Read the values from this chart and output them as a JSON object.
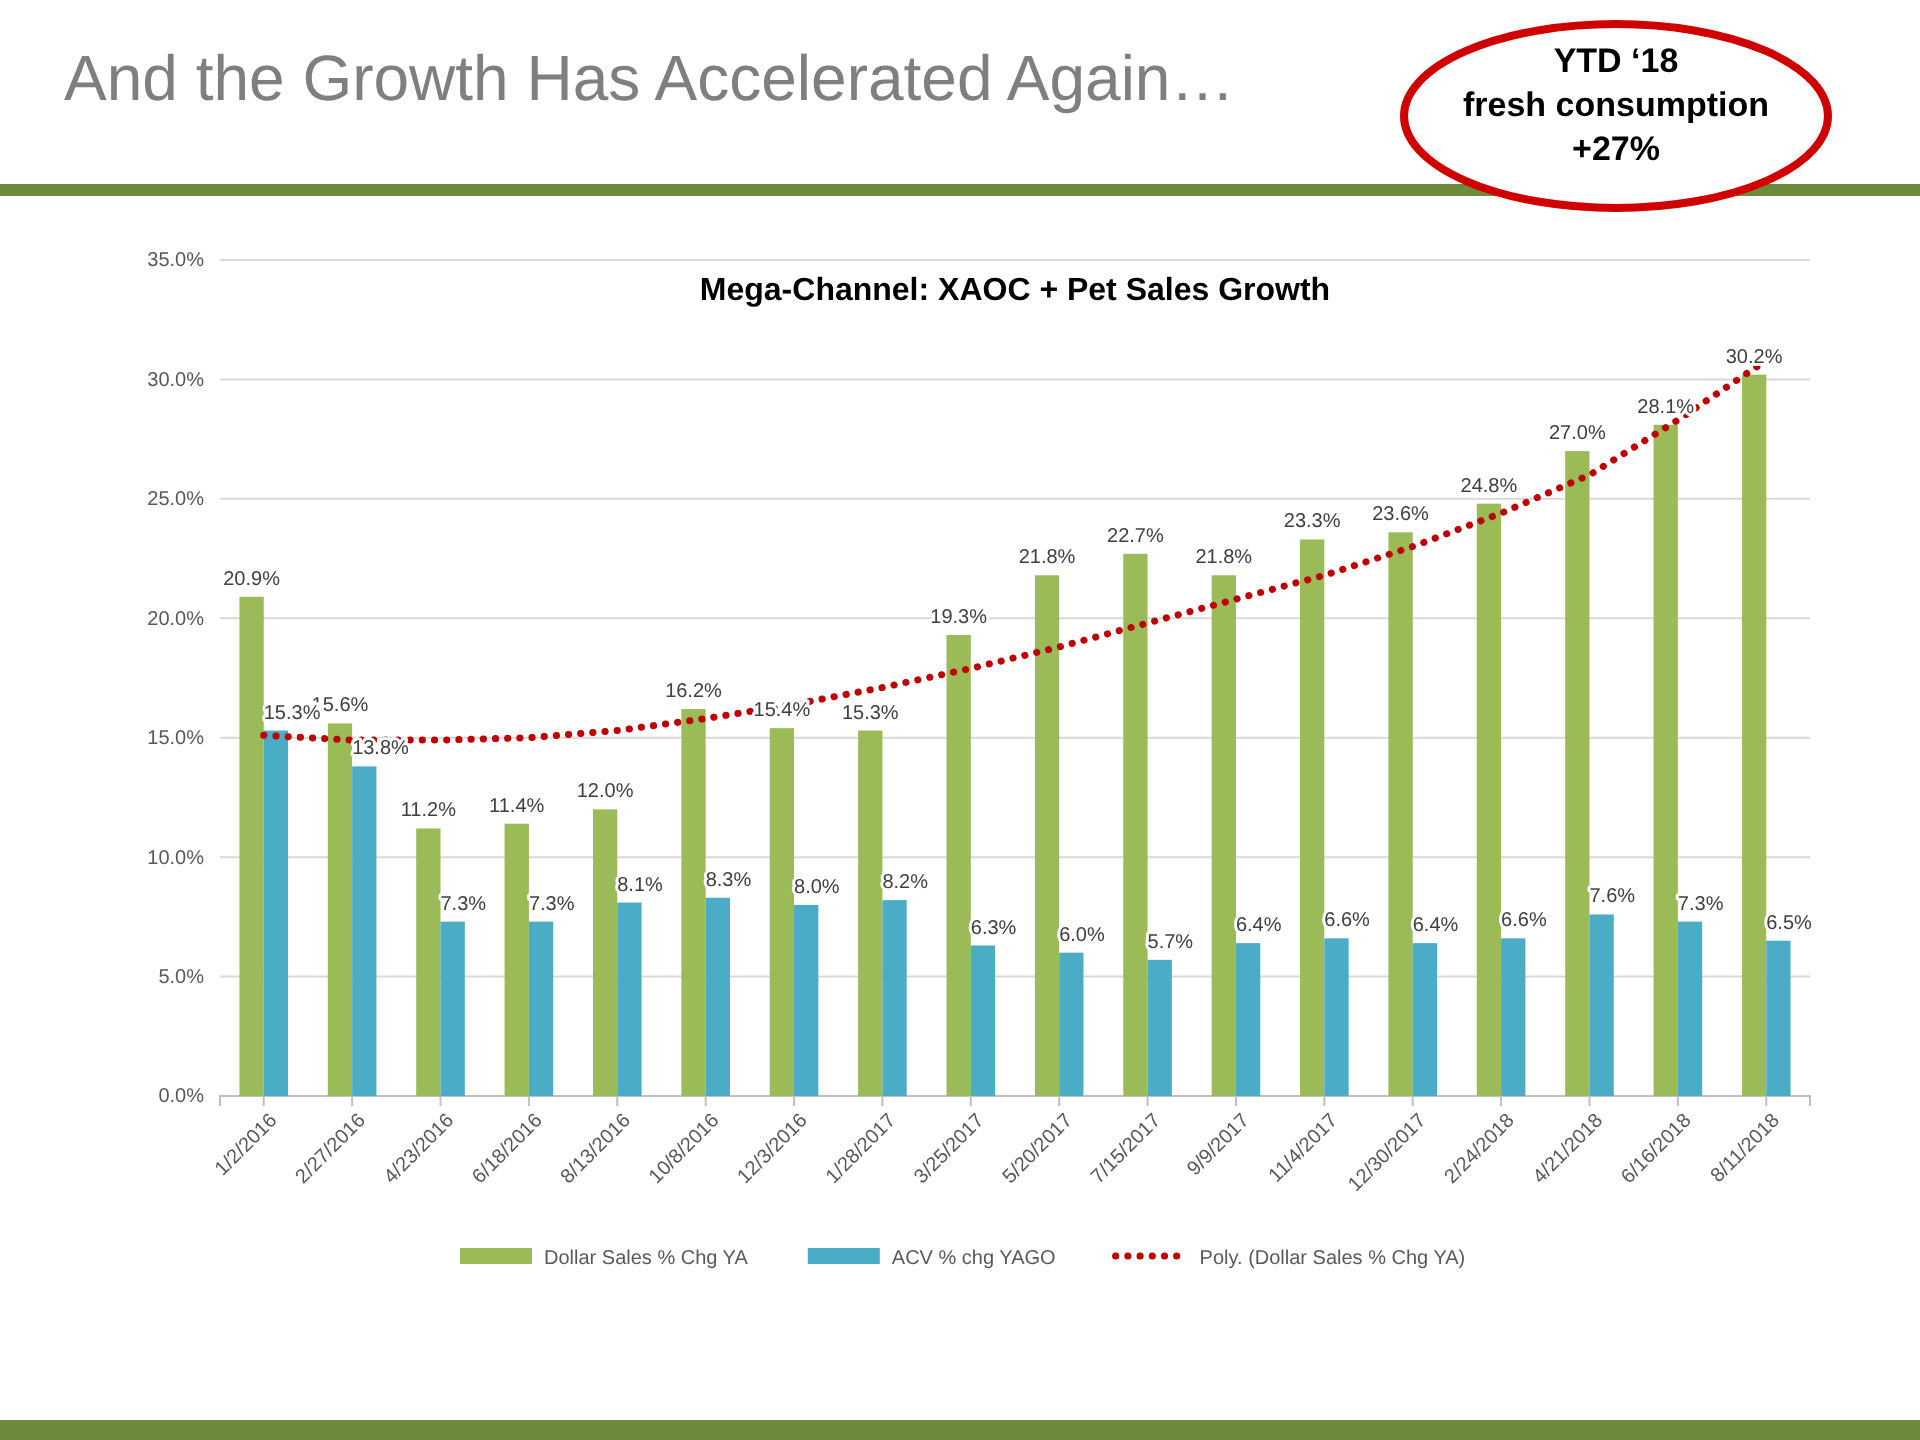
{
  "chart_data": {
    "type": "bar",
    "title": "And the Growth Has Accelerated Again…",
    "subtitle": "Mega-Channel:  XAOC + Pet Sales Growth",
    "annotations": [
      "YTD ‘18 fresh consumption +27%"
    ],
    "categories": [
      "1/2/2016",
      "2/27/2016",
      "4/23/2016",
      "6/18/2016",
      "8/13/2016",
      "10/8/2016",
      "12/3/2016",
      "1/28/2017",
      "3/25/2017",
      "5/20/2017",
      "7/15/2017",
      "9/9/2017",
      "11/4/2017",
      "12/30/2017",
      "2/24/2018",
      "4/21/2018",
      "6/16/2018",
      "8/11/2018"
    ],
    "series": [
      {
        "name": "Dollar Sales % Chg YA",
        "color": "#9bbb59",
        "values": [
          20.9,
          15.6,
          11.2,
          11.4,
          12.0,
          16.2,
          15.4,
          15.3,
          19.3,
          21.8,
          22.7,
          21.8,
          23.3,
          23.6,
          24.8,
          27.0,
          28.1,
          30.2
        ],
        "value_labels": [
          "20.9%",
          "15.6%",
          "11.2%",
          "11.4%",
          "12.0%",
          "16.2%",
          "15.4%",
          "15.3%",
          "19.3%",
          "21.8%",
          "22.7%",
          "21.8%",
          "23.3%",
          "23.6%",
          "24.8%",
          "27.0%",
          "28.1%",
          "30.2%"
        ]
      },
      {
        "name": "ACV % chg YAGO",
        "color": "#4bacc6",
        "values": [
          15.3,
          13.8,
          7.3,
          7.3,
          8.1,
          8.3,
          8.0,
          8.2,
          6.3,
          6.0,
          5.7,
          6.4,
          6.6,
          6.4,
          6.6,
          7.6,
          7.3,
          6.5
        ],
        "value_labels": [
          "15.3%",
          "13.8%",
          "7.3%",
          "7.3%",
          "8.1%",
          "8.3%",
          "8.0%",
          "8.2%",
          "6.3%",
          "6.0%",
          "5.7%",
          "6.4%",
          "6.6%",
          "6.4%",
          "6.6%",
          "7.6%",
          "7.3%",
          "6.5%"
        ]
      },
      {
        "name": "Poly. (Dollar Sales % Chg YA)",
        "type": "line",
        "line_style": "dotted",
        "color": "#c00000",
        "values": [
          15.1,
          14.9,
          14.9,
          15.0,
          15.3,
          15.8,
          16.4,
          17.1,
          17.9,
          18.8,
          19.8,
          20.8,
          21.8,
          23.0,
          24.4,
          26.0,
          28.3,
          30.8
        ]
      }
    ],
    "ylim": [
      0,
      35
    ],
    "yticks": [
      {
        "value": 0,
        "label": "0.0%"
      },
      {
        "value": 5,
        "label": "5.0%"
      },
      {
        "value": 10,
        "label": "10.0%"
      },
      {
        "value": 15,
        "label": "15.0%"
      },
      {
        "value": 20,
        "label": "20.0%"
      },
      {
        "value": 25,
        "label": "25.0%"
      },
      {
        "value": 30,
        "label": "30.0%"
      },
      {
        "value": 35,
        "label": "35.0%"
      }
    ],
    "grid": "y",
    "legend": "bottom"
  }
}
